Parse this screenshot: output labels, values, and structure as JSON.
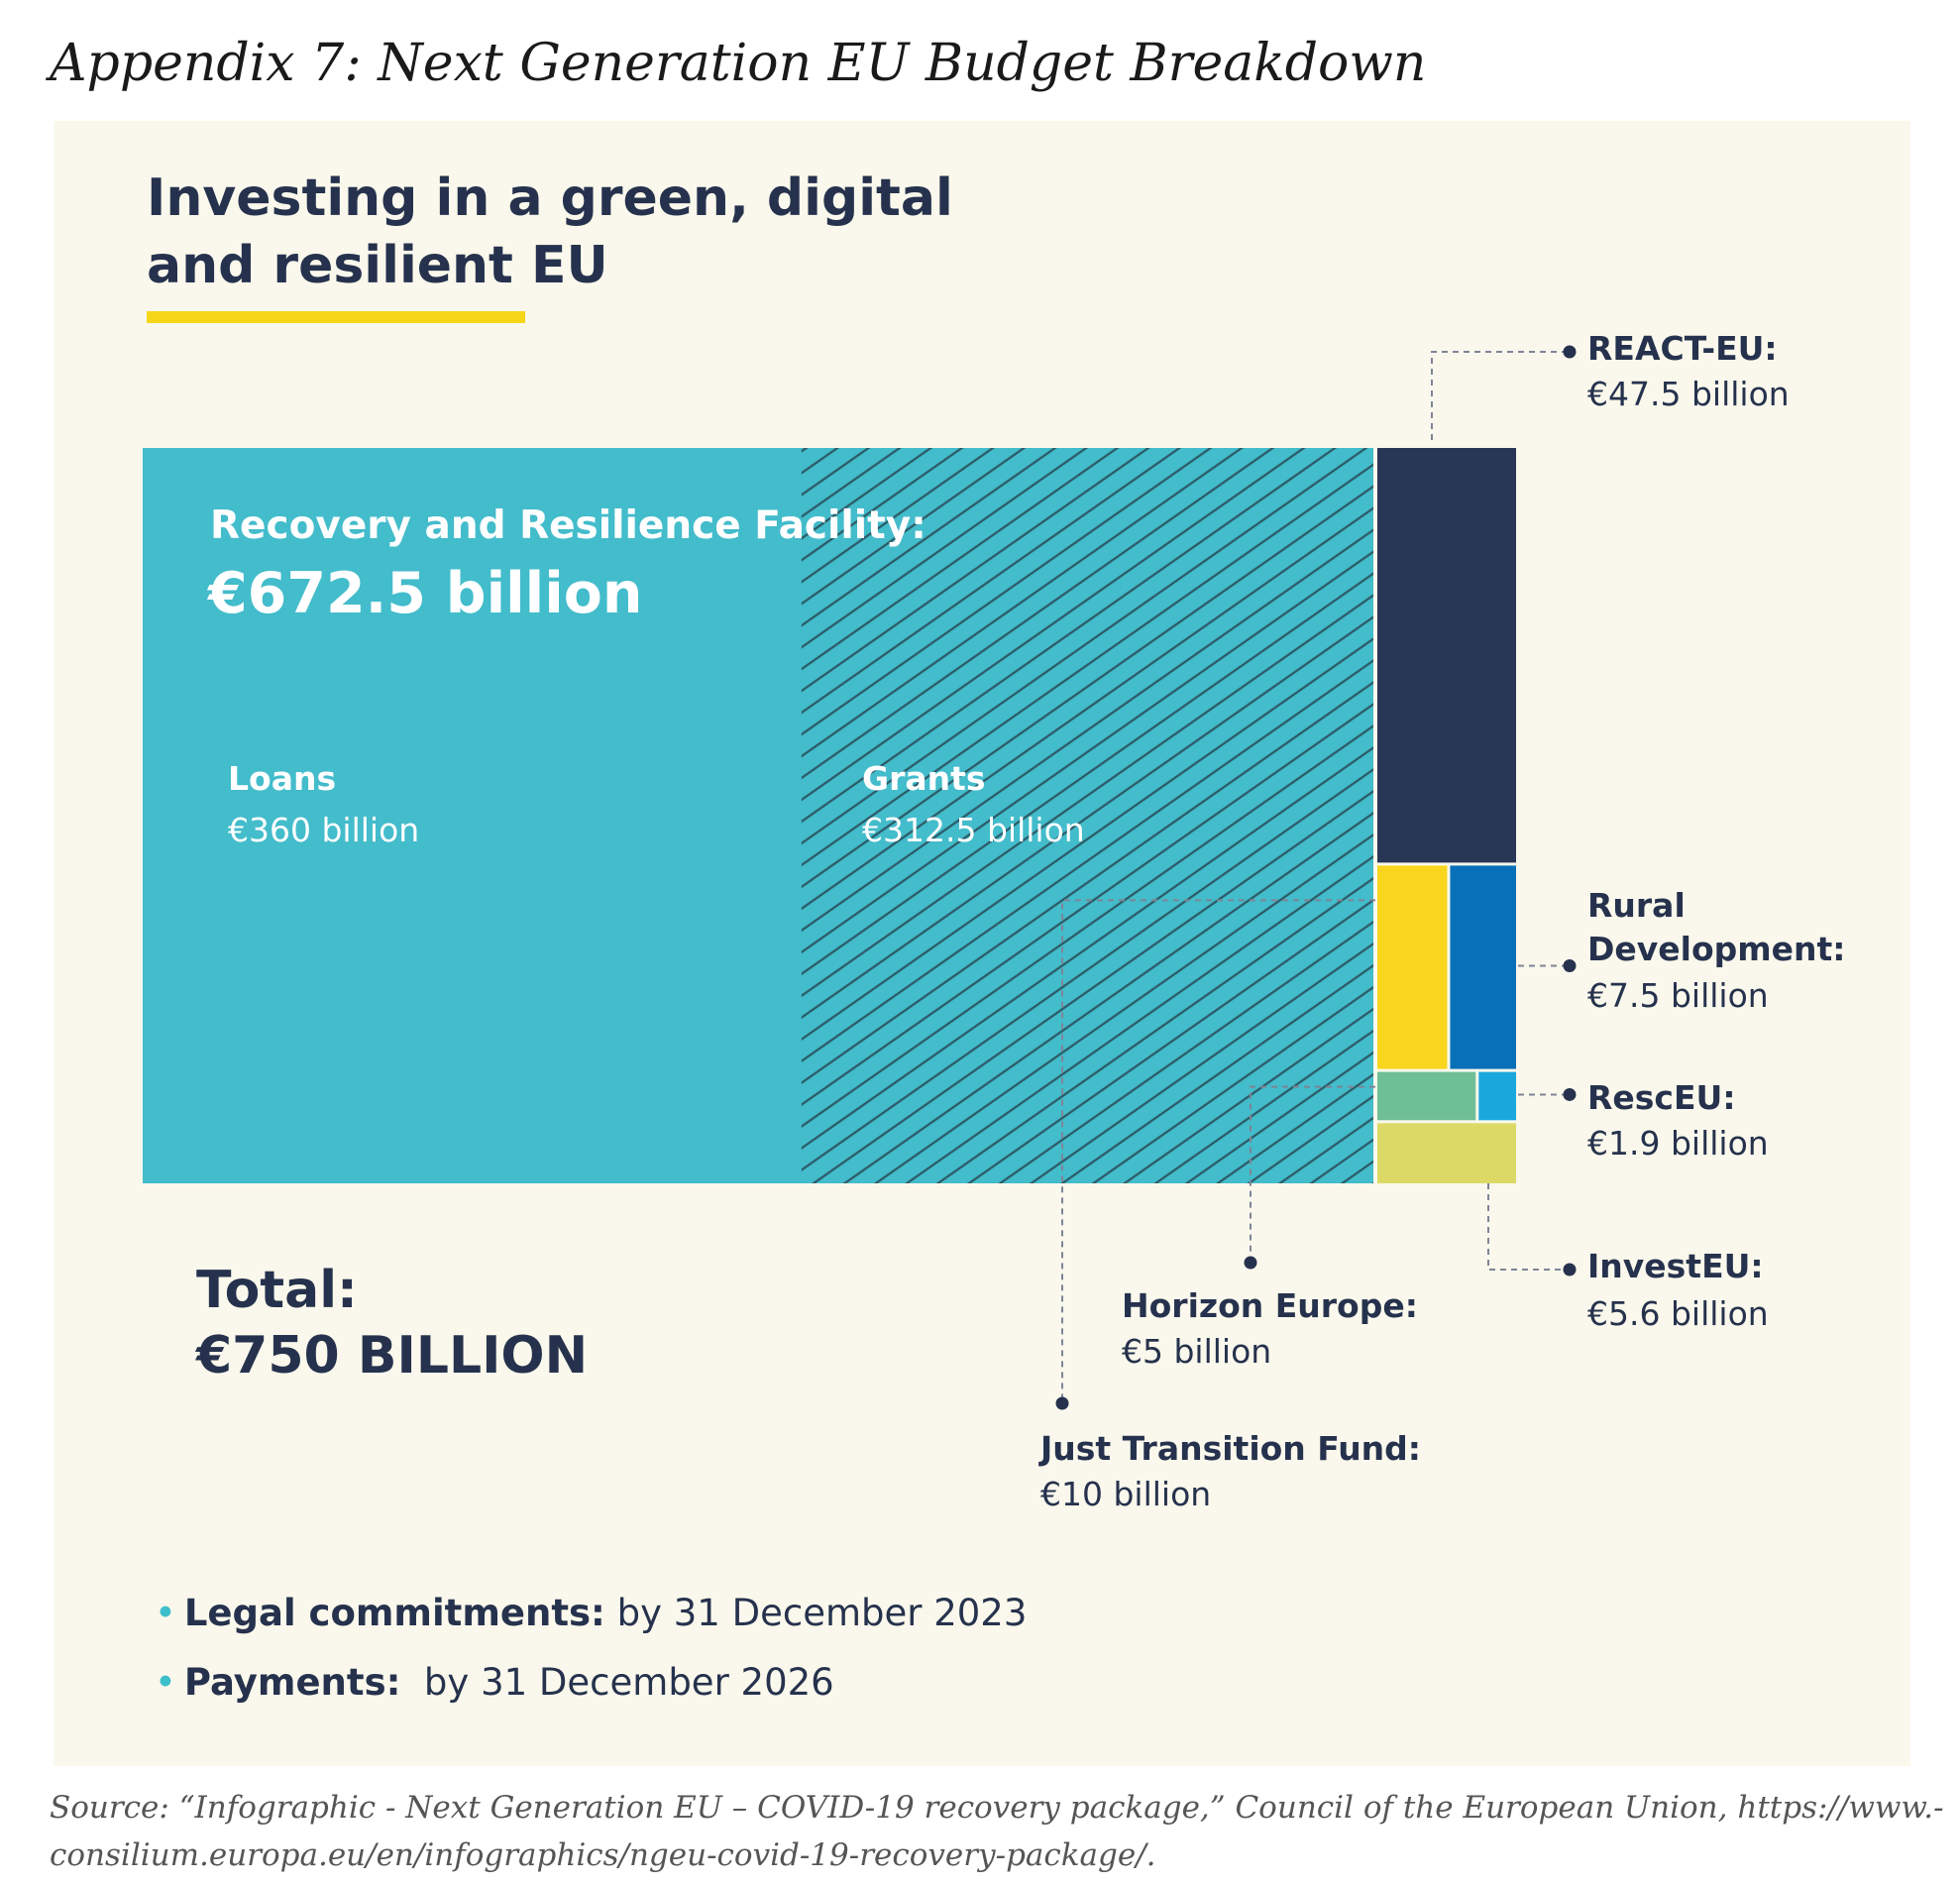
{
  "appendix_title": "Appendix 7: Next Generation EU Budget Breakdown",
  "headline": {
    "line1": "Investing in a green, digital",
    "line2": "and resilient EU"
  },
  "colors": {
    "rrf": "#43bccb",
    "react_eu": "#283755",
    "just_transition": "#f9d51d",
    "rural_development": "#0870b8",
    "horizon_europe": "#6ebf96",
    "resceu": "#1aa8dc",
    "investeu": "#dcd966",
    "text": "#26324d",
    "accent": "#f6d619",
    "background": "#faf8ec"
  },
  "chart_data": {
    "type": "treemap",
    "title": "Investing in a green, digital and resilient EU",
    "unit": "€ billion",
    "total": 750,
    "total_label": "Total:",
    "total_value": "€750 BILLION",
    "segments": [
      {
        "key": "rrf",
        "name": "Recovery and Resilience Facility:",
        "value": 672.5,
        "value_label": "€672.5 billion",
        "children": [
          {
            "key": "loans",
            "name": "Loans",
            "value": 360,
            "value_label": "€360 billion"
          },
          {
            "key": "grants",
            "name": "Grants",
            "value": 312.5,
            "value_label": "€312.5 billion"
          }
        ]
      },
      {
        "key": "react_eu",
        "name": "REACT-EU:",
        "value": 47.5,
        "value_label": "€47.5 billion"
      },
      {
        "key": "just_transition",
        "name": "Just Transition Fund:",
        "value": 10,
        "value_label": "€10 billion"
      },
      {
        "key": "rural_development",
        "name": "Rural Development:",
        "value": 7.5,
        "value_label": "€7.5 billion"
      },
      {
        "key": "investeu",
        "name": "InvestEU:",
        "value": 5.6,
        "value_label": "€5.6 billion"
      },
      {
        "key": "horizon_europe",
        "name": "Horizon Europe:",
        "value": 5,
        "value_label": "€5 billion"
      },
      {
        "key": "resceu",
        "name": "RescEU:",
        "value": 1.9,
        "value_label": "€1.9 billion"
      }
    ]
  },
  "labels": {
    "rural_line1": "Rural",
    "rural_line2": "Development:"
  },
  "timeline": [
    {
      "label": "Legal commitments:",
      "text": " by 31 December 2023"
    },
    {
      "label": "Payments:",
      "text": "  by 31 December 2026"
    }
  ],
  "source": {
    "line1": "Source: “Infographic - Next Generation EU – COVID-19 recovery package,” Council of the European Union, https://www.-",
    "line2": "consilium.europa.eu/en/infographics/ngeu-covid-19-recovery-package/."
  }
}
